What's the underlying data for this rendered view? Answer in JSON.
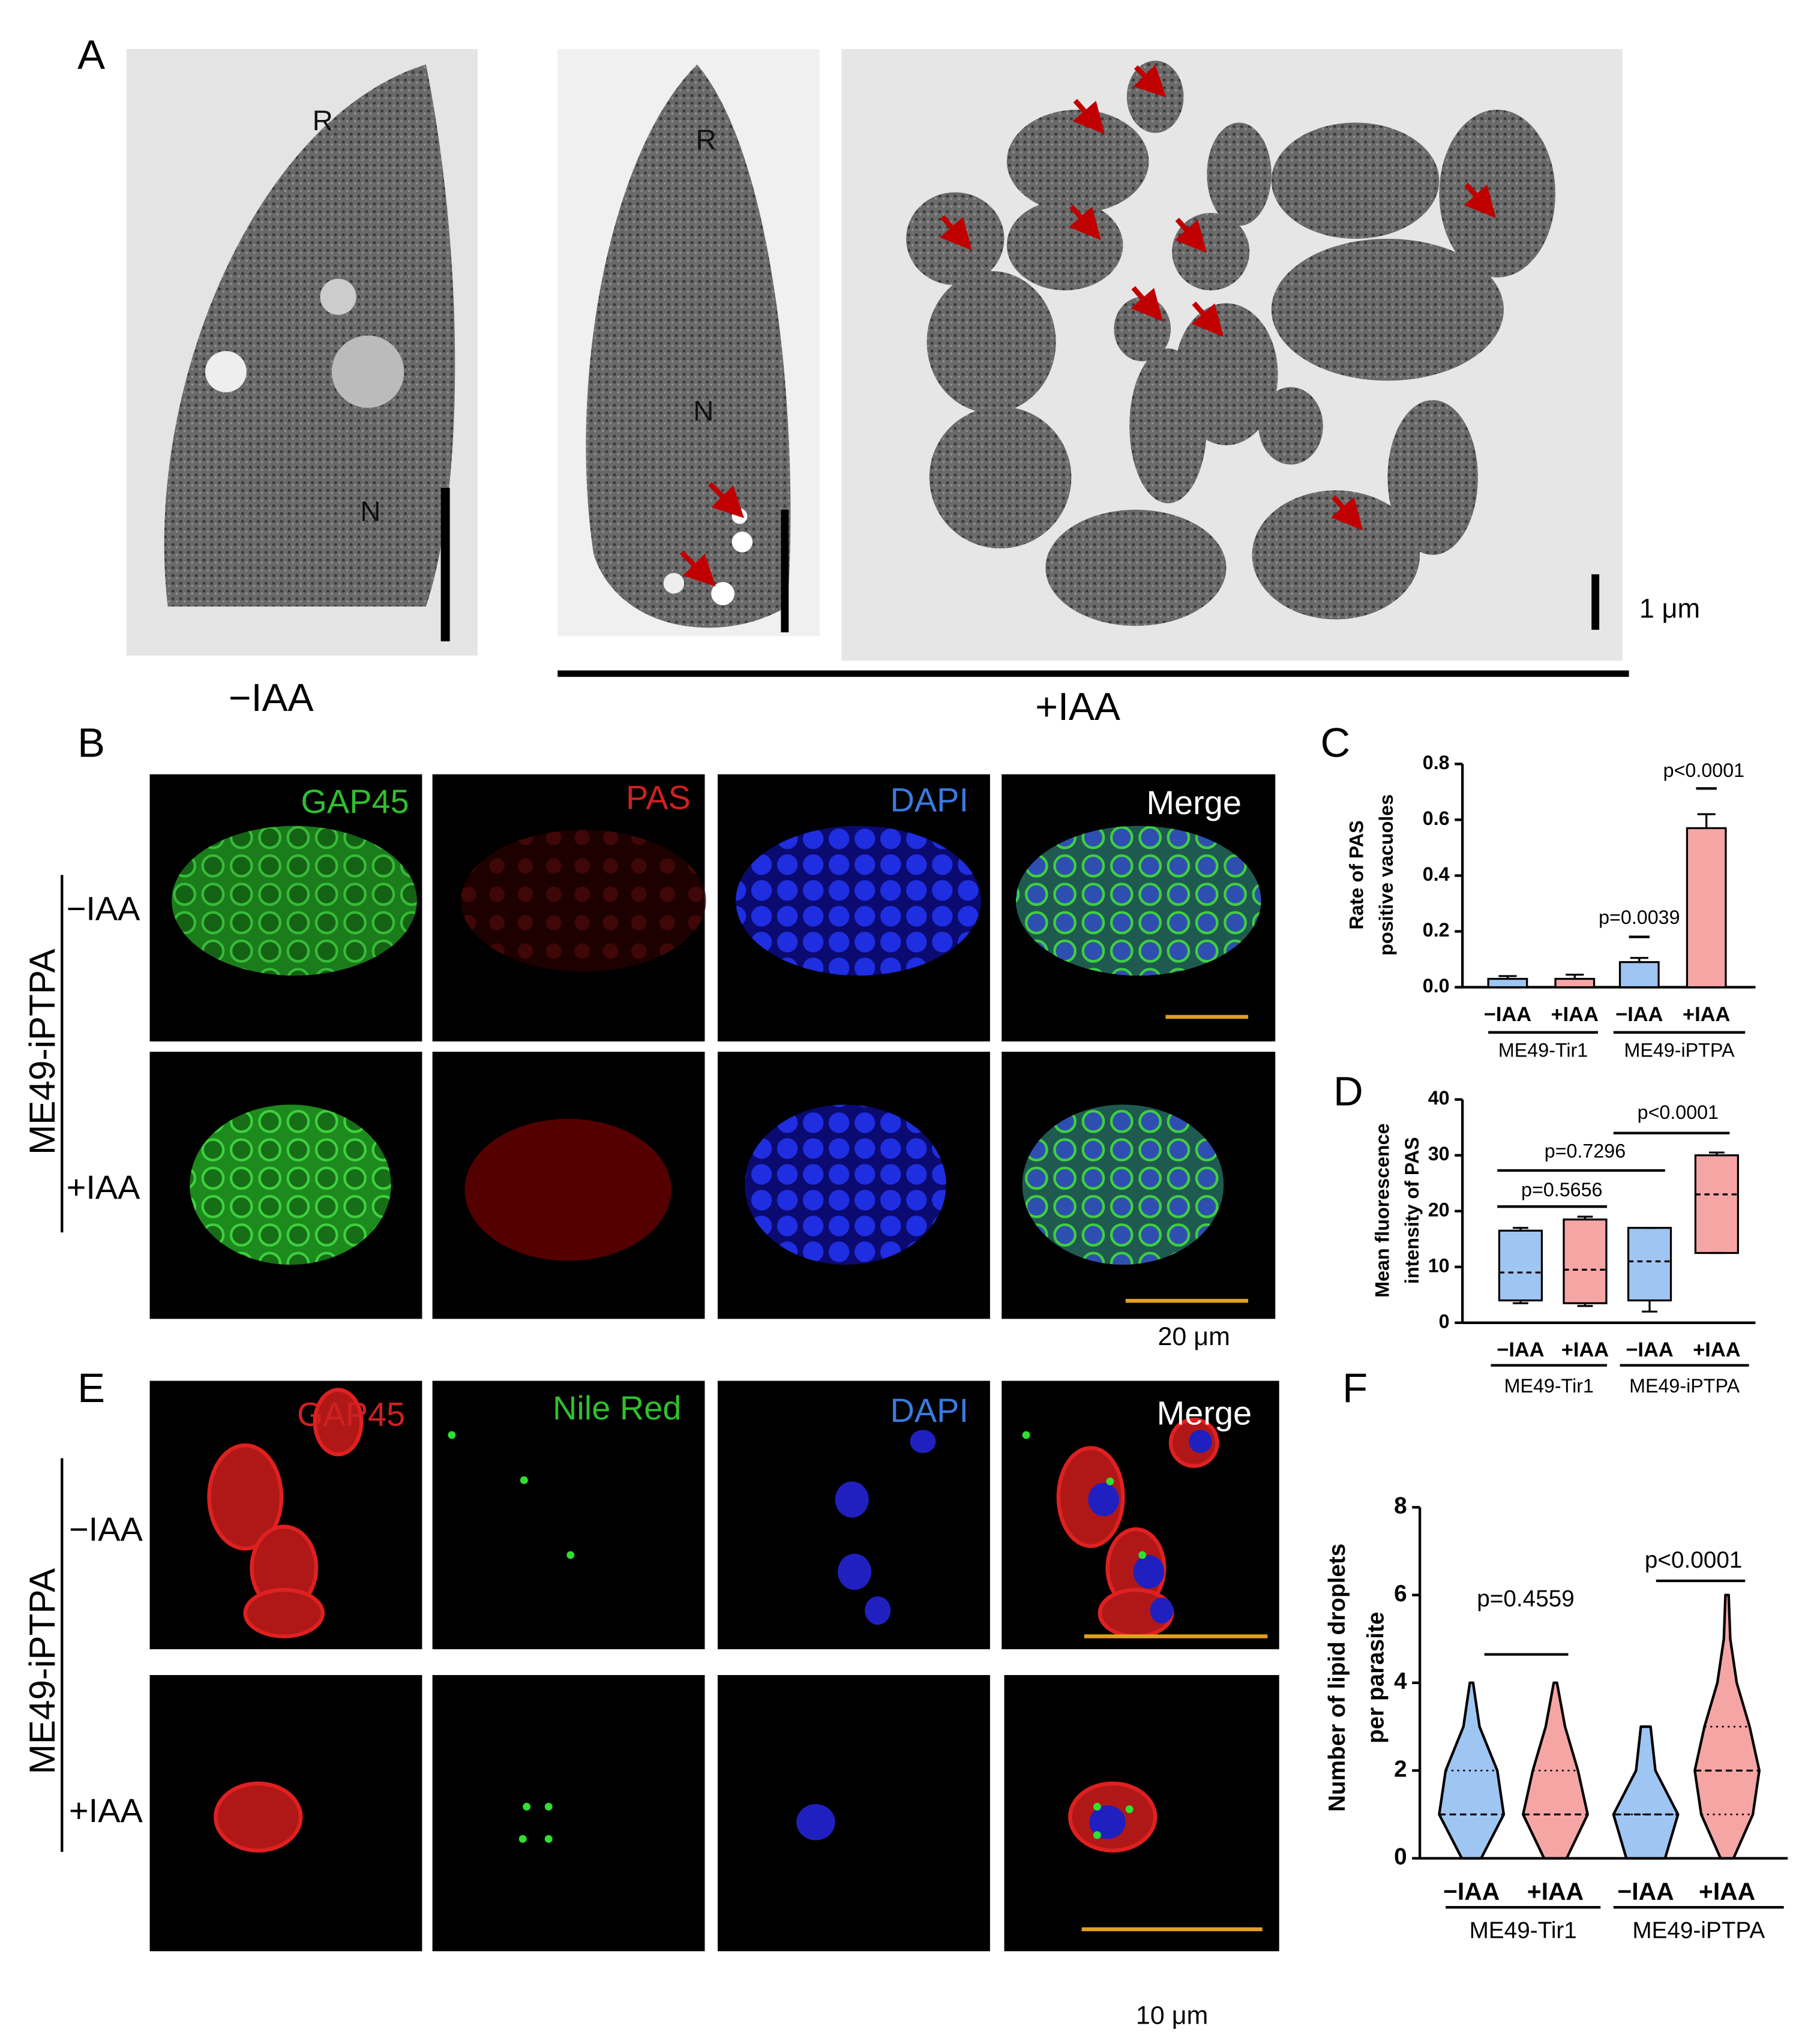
{
  "panels": {
    "A": {
      "label": "A",
      "marks": [
        "R",
        "N",
        "R",
        "N"
      ],
      "scale": "1 μm",
      "left": "−IAA",
      "right": "+IAA"
    },
    "B": {
      "label": "B",
      "channels": [
        "GAP45",
        "PAS",
        "DAPI",
        "Merge"
      ],
      "strain": "ME49-iPTPA",
      "rows": [
        "−IAA",
        "+IAA"
      ],
      "scale": "20 μm"
    },
    "E": {
      "label": "E",
      "channels": [
        "GAP45",
        "Nile Red",
        "DAPI",
        "Merge"
      ],
      "strain": "ME49-iPTPA",
      "rows": [
        "−IAA",
        "+IAA"
      ],
      "scale": "10 μm"
    }
  },
  "chart_data": [
    {
      "type": "bar",
      "panel": "C",
      "y_label": [
        "Rate of PAS",
        "positive vacuoles"
      ],
      "categories": [
        "−IAA",
        "+IAA",
        "−IAA",
        "+IAA"
      ],
      "groups": [
        "ME49-Tir1",
        "ME49-iPTPA"
      ],
      "values": [
        0.03,
        0.03,
        0.09,
        0.57
      ],
      "errors": [
        0.01,
        0.015,
        0.015,
        0.05
      ],
      "colors": [
        "#9fc5f2",
        "#f6a5a5",
        "#9fc5f2",
        "#f6a5a5"
      ],
      "ylim": [
        0,
        0.8
      ],
      "yticks": [
        {
          "value": 0,
          "label": "0.0"
        },
        0.2,
        0.4,
        0.6,
        0.8
      ],
      "annotations": [
        "p=0.0039",
        "p<0.0001"
      ]
    },
    {
      "type": "box",
      "panel": "D",
      "y_label": [
        "Mean fluorescence",
        "intensity of PAS"
      ],
      "categories": [
        "−IAA",
        "+IAA",
        "−IAA",
        "+IAA"
      ],
      "groups": [
        "ME49-Tir1",
        "ME49-iPTPA"
      ],
      "boxes": [
        {
          "min": 3.5,
          "q1": 4,
          "median": 9,
          "q3": 16.5,
          "max": 17
        },
        {
          "min": 3,
          "q1": 3.5,
          "median": 9.5,
          "q3": 18.5,
          "max": 19
        },
        {
          "min": 2,
          "q1": 4,
          "median": 11,
          "q3": 17,
          "max": 17
        },
        {
          "min": 12.5,
          "q1": 12.5,
          "median": 23,
          "q3": 30,
          "max": 30.5
        }
      ],
      "colors": [
        "#9fc5f2",
        "#f6a5a5",
        "#9fc5f2",
        "#f6a5a5"
      ],
      "ylim": [
        0,
        40
      ],
      "yticks": [
        0,
        10,
        20,
        30,
        40
      ],
      "annotations": [
        "p=0.5656",
        "p=0.7296",
        "p<0.0001"
      ]
    },
    {
      "type": "violin",
      "panel": "F",
      "y_label": [
        "Number of lipid droplets",
        "per parasite"
      ],
      "categories": [
        "−IAA",
        "+IAA",
        "−IAA",
        "+IAA"
      ],
      "groups": [
        "ME49-Tir1",
        "ME49-iPTPA"
      ],
      "violins": [
        {
          "min": 0,
          "q1": 0,
          "median": 1,
          "q3": 2,
          "max": 4,
          "density": [
            0.3,
            1,
            0.8,
            0.25,
            0.05
          ]
        },
        {
          "min": 0,
          "q1": 0,
          "median": 1,
          "q3": 2,
          "max": 4,
          "density": [
            0.35,
            1,
            0.7,
            0.3,
            0.05
          ]
        },
        {
          "min": 0,
          "q1": 0,
          "median": 1,
          "q3": 1,
          "max": 3,
          "density": [
            0.6,
            1,
            0.3,
            0.15
          ]
        },
        {
          "min": 0,
          "q1": 1,
          "median": 2,
          "q3": 3,
          "max": 6,
          "density": [
            0.2,
            0.8,
            1,
            0.7,
            0.3,
            0.1,
            0.05
          ]
        }
      ],
      "colors": [
        "#9fc5f2",
        "#f6a5a5",
        "#9fc5f2",
        "#f6a5a5"
      ],
      "ylim": [
        0,
        8
      ],
      "yticks": [
        0,
        2,
        4,
        6,
        8
      ],
      "annotations": [
        "p=0.4559",
        "p<0.0001"
      ]
    }
  ]
}
